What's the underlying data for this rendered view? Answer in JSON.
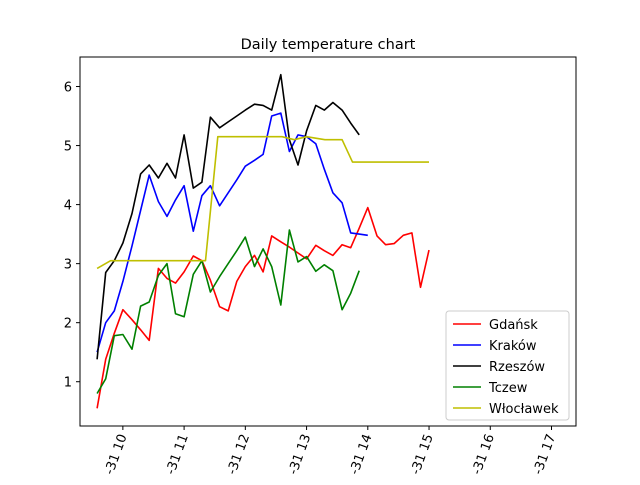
{
  "chart_data": {
    "type": "line",
    "title": "Daily temperature chart",
    "xlabel": "",
    "ylabel": "",
    "x_tick_labels": [
      "-31 10",
      "-31 11",
      "-31 12",
      "-31 13",
      "-31 14",
      "-31 15",
      "-31 16",
      "-31 17"
    ],
    "x_tick_positions": [
      10,
      11,
      12,
      13,
      14,
      15,
      16,
      17
    ],
    "xlim": [
      9.3,
      17.4
    ],
    "ylim": [
      0.25,
      6.5
    ],
    "y_ticks": [
      1,
      2,
      3,
      4,
      5,
      6
    ],
    "grid": false,
    "legend_position": "lower-right",
    "series": [
      {
        "name": "Gdańsk",
        "color": "#ff0000",
        "points": [
          [
            9.58,
            0.55
          ],
          [
            9.72,
            1.38
          ],
          [
            9.86,
            1.82
          ],
          [
            10.0,
            2.22
          ],
          [
            10.15,
            2.05
          ],
          [
            10.29,
            1.88
          ],
          [
            10.43,
            1.7
          ],
          [
            10.58,
            2.92
          ],
          [
            10.72,
            2.75
          ],
          [
            10.86,
            2.67
          ],
          [
            11.0,
            2.86
          ],
          [
            11.15,
            3.13
          ],
          [
            11.29,
            3.05
          ],
          [
            11.43,
            2.72
          ],
          [
            11.58,
            2.27
          ],
          [
            11.72,
            2.2
          ],
          [
            11.86,
            2.7
          ],
          [
            12.0,
            2.95
          ],
          [
            12.15,
            3.14
          ],
          [
            12.29,
            2.86
          ],
          [
            12.43,
            3.47
          ],
          [
            12.58,
            3.37
          ],
          [
            12.72,
            3.28
          ],
          [
            12.86,
            3.18
          ],
          [
            13.0,
            3.08
          ],
          [
            13.15,
            3.31
          ],
          [
            13.29,
            3.22
          ],
          [
            13.43,
            3.14
          ],
          [
            13.58,
            3.32
          ],
          [
            13.72,
            3.27
          ],
          [
            13.86,
            3.6
          ],
          [
            14.0,
            3.95
          ],
          [
            14.15,
            3.47
          ],
          [
            14.29,
            3.32
          ],
          [
            14.43,
            3.34
          ],
          [
            14.58,
            3.48
          ],
          [
            14.72,
            3.52
          ],
          [
            14.86,
            2.6
          ],
          [
            15.0,
            3.23
          ]
        ]
      },
      {
        "name": "Kraków",
        "color": "#0000ff",
        "points": [
          [
            9.58,
            1.5
          ],
          [
            9.72,
            2.0
          ],
          [
            9.86,
            2.2
          ],
          [
            10.0,
            2.7
          ],
          [
            10.15,
            3.3
          ],
          [
            10.29,
            3.9
          ],
          [
            10.43,
            4.5
          ],
          [
            10.58,
            4.05
          ],
          [
            10.72,
            3.8
          ],
          [
            10.86,
            4.08
          ],
          [
            11.0,
            4.32
          ],
          [
            11.15,
            3.55
          ],
          [
            11.29,
            4.15
          ],
          [
            11.43,
            4.32
          ],
          [
            11.58,
            3.98
          ],
          [
            11.72,
            4.2
          ],
          [
            11.86,
            4.42
          ],
          [
            12.0,
            4.65
          ],
          [
            12.15,
            4.75
          ],
          [
            12.29,
            4.85
          ],
          [
            12.43,
            5.5
          ],
          [
            12.58,
            5.55
          ],
          [
            12.72,
            4.9
          ],
          [
            12.86,
            5.18
          ],
          [
            13.0,
            5.15
          ],
          [
            13.15,
            5.03
          ],
          [
            13.29,
            4.6
          ],
          [
            13.43,
            4.2
          ],
          [
            13.58,
            4.03
          ],
          [
            13.72,
            3.52
          ],
          [
            13.86,
            3.5
          ],
          [
            14.0,
            3.48
          ]
        ]
      },
      {
        "name": "Rzeszów",
        "color": "#000000",
        "points": [
          [
            9.58,
            1.38
          ],
          [
            9.72,
            2.85
          ],
          [
            9.86,
            3.05
          ],
          [
            10.0,
            3.35
          ],
          [
            10.15,
            3.85
          ],
          [
            10.29,
            4.52
          ],
          [
            10.43,
            4.67
          ],
          [
            10.58,
            4.45
          ],
          [
            10.72,
            4.7
          ],
          [
            10.86,
            4.45
          ],
          [
            11.0,
            5.18
          ],
          [
            11.15,
            4.28
          ],
          [
            11.29,
            4.38
          ],
          [
            11.43,
            5.48
          ],
          [
            11.58,
            5.3
          ],
          [
            11.72,
            5.4
          ],
          [
            11.86,
            5.5
          ],
          [
            12.0,
            5.6
          ],
          [
            12.15,
            5.7
          ],
          [
            12.29,
            5.68
          ],
          [
            12.43,
            5.6
          ],
          [
            12.58,
            6.2
          ],
          [
            12.72,
            5.1
          ],
          [
            12.86,
            4.67
          ],
          [
            13.0,
            5.25
          ],
          [
            13.15,
            5.68
          ],
          [
            13.29,
            5.6
          ],
          [
            13.43,
            5.73
          ],
          [
            13.58,
            5.6
          ],
          [
            13.72,
            5.38
          ],
          [
            13.86,
            5.18
          ]
        ]
      },
      {
        "name": "Tczew",
        "color": "#008000",
        "points": [
          [
            9.58,
            0.8
          ],
          [
            9.72,
            1.05
          ],
          [
            9.86,
            1.78
          ],
          [
            10.0,
            1.8
          ],
          [
            10.15,
            1.55
          ],
          [
            10.29,
            2.28
          ],
          [
            10.43,
            2.35
          ],
          [
            10.58,
            2.8
          ],
          [
            10.72,
            3.0
          ],
          [
            10.86,
            2.15
          ],
          [
            11.0,
            2.1
          ],
          [
            11.15,
            2.82
          ],
          [
            11.29,
            3.05
          ],
          [
            11.43,
            2.52
          ],
          [
            11.58,
            2.78
          ],
          [
            11.72,
            3.0
          ],
          [
            11.86,
            3.22
          ],
          [
            12.0,
            3.45
          ],
          [
            12.15,
            2.95
          ],
          [
            12.29,
            3.25
          ],
          [
            12.43,
            2.95
          ],
          [
            12.58,
            2.3
          ],
          [
            12.72,
            3.57
          ],
          [
            12.86,
            3.03
          ],
          [
            13.0,
            3.12
          ],
          [
            13.15,
            2.87
          ],
          [
            13.29,
            2.98
          ],
          [
            13.43,
            2.88
          ],
          [
            13.58,
            2.22
          ],
          [
            13.72,
            2.5
          ],
          [
            13.86,
            2.88
          ]
        ]
      },
      {
        "name": "Włocławek",
        "color": "#bfbf00",
        "points": [
          [
            9.58,
            2.92
          ],
          [
            9.8,
            3.05
          ],
          [
            10.4,
            3.05
          ],
          [
            11.0,
            3.05
          ],
          [
            11.35,
            3.05
          ],
          [
            11.55,
            5.15
          ],
          [
            12.0,
            5.15
          ],
          [
            12.4,
            5.15
          ],
          [
            12.6,
            5.15
          ],
          [
            12.8,
            5.1
          ],
          [
            13.0,
            5.15
          ],
          [
            13.3,
            5.1
          ],
          [
            13.58,
            5.1
          ],
          [
            13.75,
            4.72
          ],
          [
            14.2,
            4.72
          ],
          [
            14.6,
            4.72
          ],
          [
            15.0,
            4.72
          ]
        ]
      }
    ]
  }
}
